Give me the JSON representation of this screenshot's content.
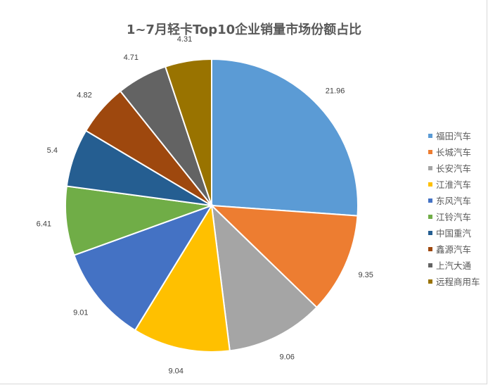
{
  "chart_data": {
    "type": "pie",
    "title": "1~7月轻卡Top10企业销量市场份额占比",
    "categories": [
      "福田汽车",
      "长城汽车",
      "长安汽车",
      "江淮汽车",
      "东风汽车",
      "江铃汽车",
      "中国重汽",
      "鑫源汽车",
      "上汽大通",
      "远程商用车"
    ],
    "values": [
      21.96,
      9.35,
      9.06,
      9.04,
      9.01,
      6.41,
      5.4,
      4.82,
      4.71,
      4.31
    ],
    "value_labels": [
      "21.96",
      "9.35",
      "9.06",
      "9.04",
      "9.01",
      "6.41",
      "5.4",
      "4.82",
      "4.71",
      "4.31"
    ],
    "colors": [
      "#5b9bd5",
      "#ed7d31",
      "#a5a5a5",
      "#ffc000",
      "#4472c4",
      "#70ad47",
      "#255e91",
      "#9e480e",
      "#636363",
      "#997300"
    ],
    "legend_position": "right",
    "start_angle_deg": 0,
    "direction": "clockwise"
  },
  "legend": {
    "items": [
      {
        "label": "福田汽车",
        "color": "#5b9bd5"
      },
      {
        "label": "长城汽车",
        "color": "#ed7d31"
      },
      {
        "label": "长安汽车",
        "color": "#a5a5a5"
      },
      {
        "label": "江淮汽车",
        "color": "#ffc000"
      },
      {
        "label": "东风汽车",
        "color": "#4472c4"
      },
      {
        "label": "江铃汽车",
        "color": "#70ad47"
      },
      {
        "label": "中国重汽",
        "color": "#255e91"
      },
      {
        "label": "鑫源汽车",
        "color": "#9e480e"
      },
      {
        "label": "上汽大通",
        "color": "#636363"
      },
      {
        "label": "远程商用车",
        "color": "#997300"
      }
    ]
  }
}
